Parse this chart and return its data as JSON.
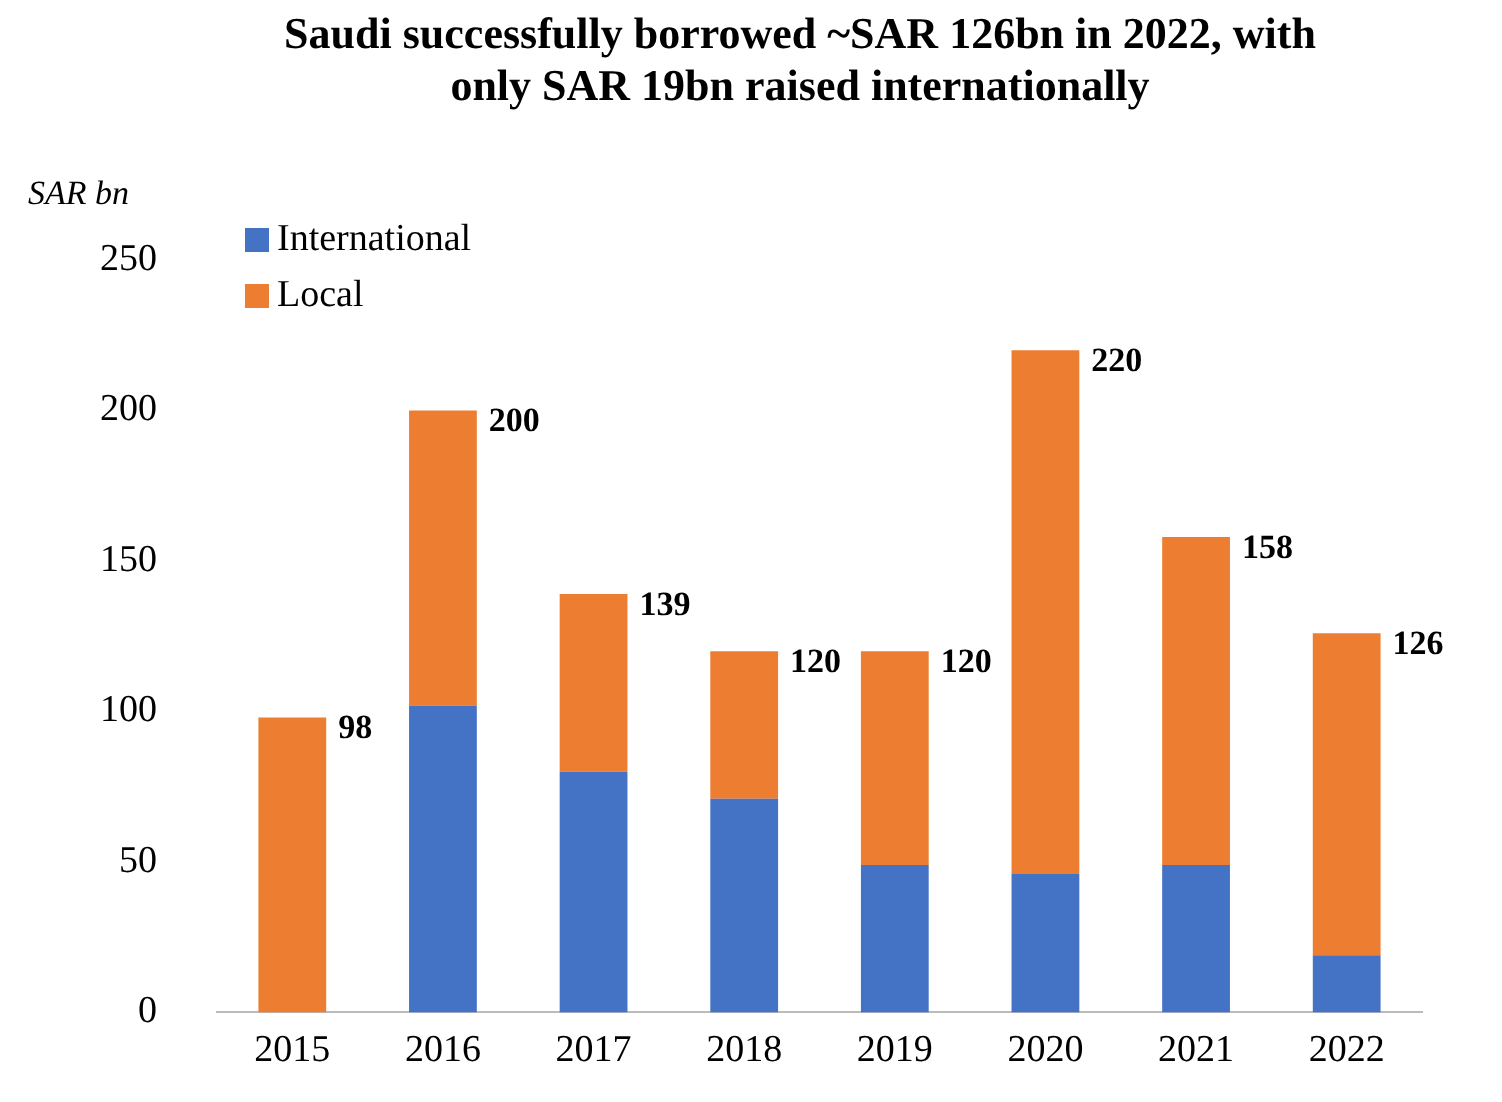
{
  "chart_data": {
    "type": "bar",
    "title": "Saudi successfully borrowed ~SAR 126bn in 2022, with only SAR 19bn raised internationally",
    "ylabel": "SAR bn",
    "categories": [
      "2015",
      "2016",
      "2017",
      "2018",
      "2019",
      "2020",
      "2021",
      "2022"
    ],
    "series": [
      {
        "name": "International",
        "color": "#4472c4",
        "values": [
          0,
          102,
          80,
          71,
          49,
          46,
          49,
          19
        ]
      },
      {
        "name": "Local",
        "color": "#ed7d31",
        "values": [
          98,
          98,
          59,
          49,
          71,
          174,
          109,
          107
        ]
      }
    ],
    "stacked": true,
    "totals": [
      "98",
      "200",
      "139",
      "120",
      "120",
      "220",
      "158",
      "126"
    ],
    "ylim": [
      0,
      250
    ],
    "yticks": [
      0,
      50,
      100,
      150,
      200,
      250
    ],
    "grid": false,
    "legend": "top left"
  }
}
